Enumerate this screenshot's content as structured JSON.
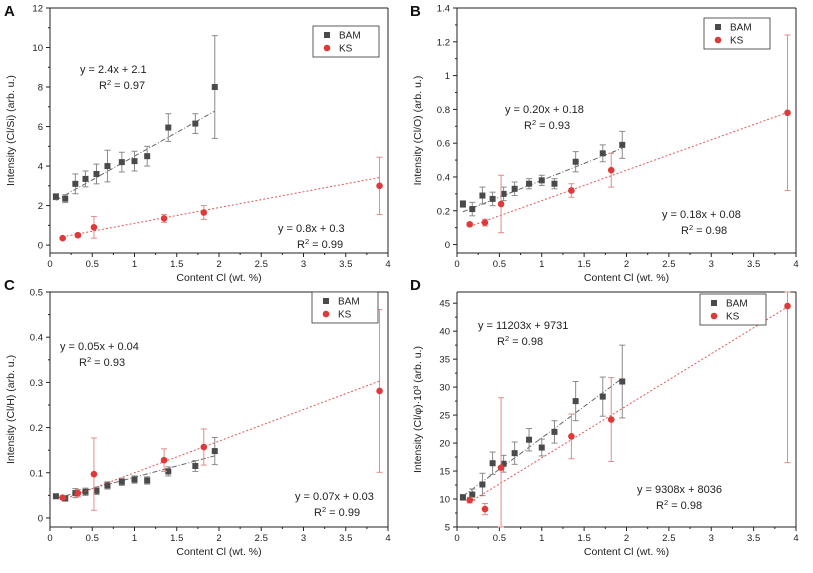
{
  "chart_data": [
    {
      "type": "scatter",
      "panel": "A",
      "xlabel": "Content Cl (wt. %)",
      "ylabel": "Intensity (Cl/Si) (arb. u.)",
      "xlim": [
        0,
        4
      ],
      "ylim": [
        -0.4,
        12
      ],
      "xticks": [
        0,
        0.5,
        1,
        1.5,
        2,
        2.5,
        3,
        3.5,
        4
      ],
      "xtick_labels": [
        "0",
        "0.5",
        "1",
        "1.5",
        "2",
        "2.5",
        "3",
        "3.5",
        "4"
      ],
      "yticks": [
        0,
        2,
        4,
        6,
        8,
        10,
        12
      ],
      "ytick_labels": [
        "0",
        "2",
        "4",
        "6",
        "8",
        "10",
        "12"
      ],
      "legend": {
        "position": "top-right",
        "entries": [
          "BAM",
          "KS"
        ]
      },
      "series": [
        {
          "name": "BAM",
          "marker": "square",
          "color": "#4a4a4a",
          "x": [
            0.07,
            0.18,
            0.3,
            0.42,
            0.55,
            0.68,
            0.85,
            1.0,
            1.15,
            1.4,
            1.72,
            1.95
          ],
          "y": [
            2.45,
            2.35,
            3.1,
            3.35,
            3.6,
            4.0,
            4.2,
            4.25,
            4.5,
            5.95,
            6.15,
            8.0
          ],
          "err": [
            0.15,
            0.2,
            0.5,
            0.4,
            0.5,
            0.8,
            0.5,
            0.5,
            0.5,
            0.7,
            0.5,
            2.6
          ],
          "fit": {
            "slope": 2.4,
            "intercept": 2.1,
            "x_range": [
              0.07,
              1.95
            ]
          },
          "equation": "y = 2.4x + 2.1",
          "r2": "0.97"
        },
        {
          "name": "KS",
          "marker": "circle",
          "color": "#e0393a",
          "x": [
            0.15,
            0.33,
            0.52,
            1.35,
            1.82,
            3.9
          ],
          "y": [
            0.35,
            0.5,
            0.9,
            1.35,
            1.65,
            3.0
          ],
          "err": [
            0.05,
            0.1,
            0.55,
            0.2,
            0.35,
            1.45
          ],
          "fit": {
            "slope": 0.8,
            "intercept": 0.3,
            "x_range": [
              0.15,
              3.9
            ]
          },
          "equation": "y = 0.8x + 0.3",
          "r2": "0.99"
        }
      ]
    },
    {
      "type": "scatter",
      "panel": "B",
      "xlabel": "Content Cl (wt. %)",
      "ylabel": "Intensity (Cl/O) (arb. u.)",
      "xlim": [
        0,
        4
      ],
      "ylim": [
        -0.05,
        1.4
      ],
      "xticks": [
        0,
        0.5,
        1,
        1.5,
        2,
        2.5,
        3,
        3.5,
        4
      ],
      "xtick_labels": [
        "0",
        "0.5",
        "1",
        "1.5",
        "2",
        "2.5",
        "3",
        "3.5",
        "4"
      ],
      "yticks": [
        0,
        0.2,
        0.4,
        0.6,
        0.8,
        1,
        1.2,
        1.4
      ],
      "ytick_labels": [
        "0",
        "0.2",
        "0.4",
        "0.6",
        "0.8",
        "1",
        "1.2",
        "1.4"
      ],
      "legend": {
        "position": "top-right",
        "entries": [
          "BAM",
          "KS"
        ]
      },
      "series": [
        {
          "name": "BAM",
          "marker": "square",
          "color": "#4a4a4a",
          "x": [
            0.07,
            0.18,
            0.3,
            0.42,
            0.55,
            0.68,
            0.85,
            1.0,
            1.15,
            1.4,
            1.72,
            1.95
          ],
          "y": [
            0.24,
            0.21,
            0.29,
            0.27,
            0.3,
            0.33,
            0.36,
            0.38,
            0.36,
            0.49,
            0.54,
            0.59
          ],
          "err": [
            0.02,
            0.04,
            0.05,
            0.04,
            0.04,
            0.04,
            0.03,
            0.03,
            0.03,
            0.06,
            0.05,
            0.08
          ],
          "fit": {
            "slope": 0.2,
            "intercept": 0.18,
            "x_range": [
              0.07,
              1.95
            ]
          },
          "equation": "y = 0.20x + 0.18",
          "r2": "0.93"
        },
        {
          "name": "KS",
          "marker": "circle",
          "color": "#e0393a",
          "x": [
            0.15,
            0.33,
            0.52,
            1.35,
            1.82,
            3.9
          ],
          "y": [
            0.12,
            0.13,
            0.24,
            0.32,
            0.44,
            0.78
          ],
          "err": [
            0.01,
            0.02,
            0.17,
            0.04,
            0.1,
            0.46
          ],
          "fit": {
            "slope": 0.18,
            "intercept": 0.08,
            "x_range": [
              0.15,
              3.9
            ]
          },
          "equation": "y = 0.18x + 0.08",
          "r2": "0.98"
        }
      ]
    },
    {
      "type": "scatter",
      "panel": "C",
      "xlabel": "Content Cl (wt. %)",
      "ylabel": "Intensity (Cl/H) (arb. u.)",
      "xlim": [
        0,
        4
      ],
      "ylim": [
        -0.02,
        0.5
      ],
      "xticks": [
        0,
        0.5,
        1,
        1.5,
        2,
        2.5,
        3,
        3.5,
        4
      ],
      "xtick_labels": [
        "0",
        "0.5",
        "1",
        "1.5",
        "2",
        "2.5",
        "3",
        "3.5",
        "4"
      ],
      "yticks": [
        0,
        0.1,
        0.2,
        0.3,
        0.4,
        0.5
      ],
      "ytick_labels": [
        "0",
        "0.1",
        "0.2",
        "0.3",
        "0.4",
        "0.5"
      ],
      "legend": {
        "position": "top-right",
        "entries": [
          "BAM",
          "KS"
        ]
      },
      "series": [
        {
          "name": "BAM",
          "marker": "square",
          "color": "#4a4a4a",
          "x": [
            0.07,
            0.18,
            0.3,
            0.42,
            0.55,
            0.68,
            0.85,
            1.0,
            1.15,
            1.4,
            1.72,
            1.95
          ],
          "y": [
            0.048,
            0.043,
            0.055,
            0.058,
            0.06,
            0.072,
            0.08,
            0.085,
            0.083,
            0.103,
            0.115,
            0.148
          ],
          "err": [
            0.003,
            0.005,
            0.01,
            0.008,
            0.008,
            0.008,
            0.008,
            0.008,
            0.008,
            0.01,
            0.012,
            0.03
          ],
          "fit": {
            "slope": 0.05,
            "intercept": 0.04,
            "x_range": [
              0.07,
              1.95
            ]
          },
          "equation": "y = 0.05x + 0.04",
          "r2": "0.93"
        },
        {
          "name": "KS",
          "marker": "circle",
          "color": "#e0393a",
          "x": [
            0.15,
            0.33,
            0.52,
            1.35,
            1.82,
            3.9
          ],
          "y": [
            0.045,
            0.055,
            0.097,
            0.128,
            0.157,
            0.281
          ],
          "err": [
            0.004,
            0.008,
            0.08,
            0.025,
            0.04,
            0.18
          ],
          "fit": {
            "slope": 0.07,
            "intercept": 0.03,
            "x_range": [
              0.15,
              3.9
            ]
          },
          "equation": "y = 0.07x + 0.03",
          "r2": "0.99"
        }
      ]
    },
    {
      "type": "scatter",
      "panel": "D",
      "xlabel": "Content Cl (wt. %)",
      "ylabel": "Intensity (Cl/φ)·10³ (arb. u.)",
      "xlim": [
        0,
        4
      ],
      "ylim": [
        5,
        47
      ],
      "xticks": [
        0,
        0.5,
        1,
        1.5,
        2,
        2.5,
        3,
        3.5,
        4
      ],
      "xtick_labels": [
        "0",
        "0.5",
        "1",
        "1.5",
        "2",
        "2.5",
        "3",
        "3.5",
        "4"
      ],
      "yticks": [
        5,
        10,
        15,
        20,
        25,
        30,
        35,
        40,
        45
      ],
      "ytick_labels": [
        "5",
        "10",
        "15",
        "20",
        "25",
        "30",
        "35",
        "40",
        "45"
      ],
      "legend": {
        "position": "top-right",
        "entries": [
          "BAM",
          "KS"
        ]
      },
      "series": [
        {
          "name": "BAM",
          "marker": "square",
          "color": "#4a4a4a",
          "x": [
            0.07,
            0.18,
            0.3,
            0.42,
            0.55,
            0.68,
            0.85,
            1.0,
            1.15,
            1.4,
            1.72,
            1.95
          ],
          "y": [
            10.3,
            10.8,
            12.6,
            16.4,
            16.3,
            18.2,
            20.6,
            19.2,
            22.0,
            27.5,
            28.3,
            31.0
          ],
          "err": [
            0.5,
            1.0,
            2.0,
            2.0,
            1.5,
            2.0,
            2.0,
            1.5,
            2.0,
            3.5,
            3.5,
            6.5
          ],
          "fit": {
            "slope": 11.203,
            "intercept": 9.731,
            "x_range": [
              0.07,
              1.95
            ]
          },
          "equation": "y = 11203x + 9731",
          "r2": "0.98"
        },
        {
          "name": "KS",
          "marker": "circle",
          "color": "#e0393a",
          "x": [
            0.15,
            0.33,
            0.52,
            1.35,
            1.82,
            3.9
          ],
          "y": [
            9.8,
            8.2,
            15.6,
            21.2,
            24.2,
            44.5
          ],
          "err": [
            0.5,
            1.0,
            12.5,
            4.0,
            7.5,
            28.0
          ],
          "fit": {
            "slope": 9.308,
            "intercept": 8.036,
            "x_range": [
              0.15,
              3.9
            ]
          },
          "equation": "y = 9308x + 8036",
          "r2": "0.98"
        }
      ]
    }
  ]
}
